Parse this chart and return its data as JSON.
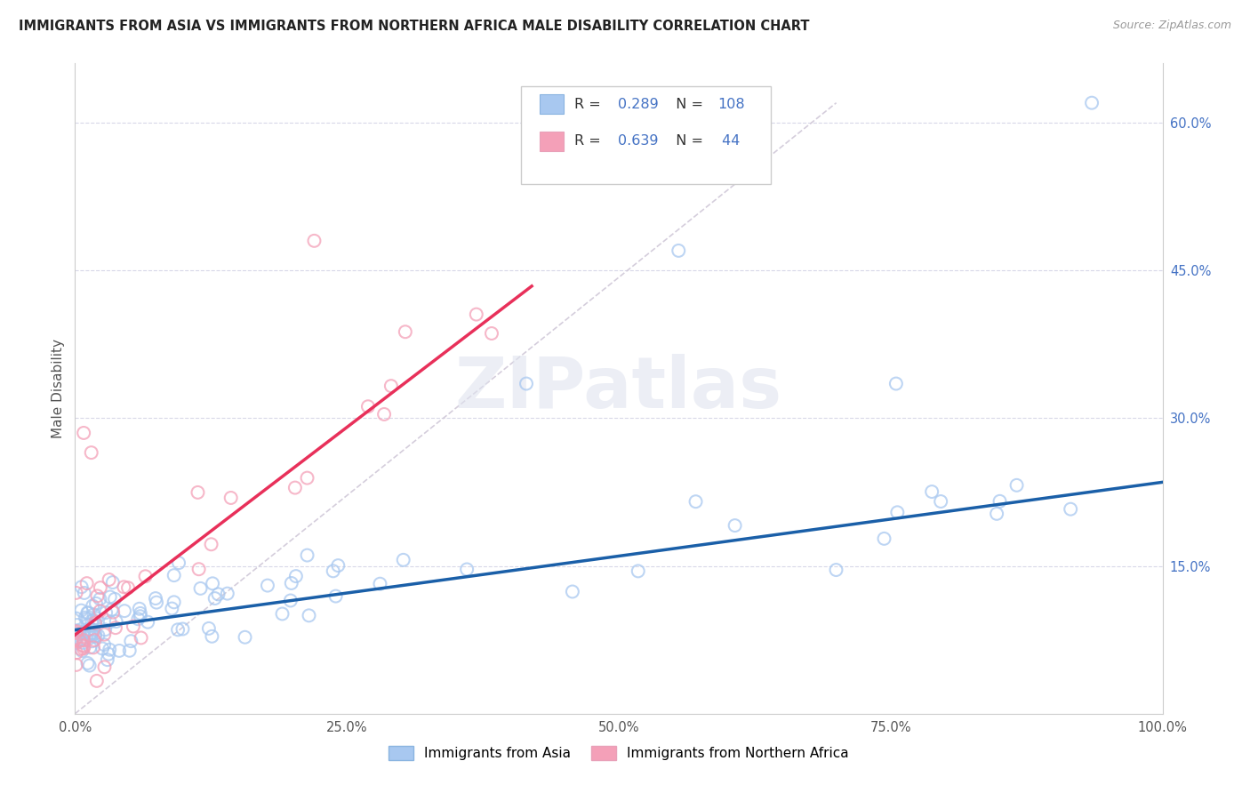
{
  "title": "IMMIGRANTS FROM ASIA VS IMMIGRANTS FROM NORTHERN AFRICA MALE DISABILITY CORRELATION CHART",
  "source": "Source: ZipAtlas.com",
  "ylabel": "Male Disability",
  "xlim": [
    0,
    1.0
  ],
  "ylim": [
    0.0,
    0.66
  ],
  "xticks": [
    0.0,
    0.25,
    0.5,
    0.75,
    1.0
  ],
  "xtick_labels": [
    "0.0%",
    "25.0%",
    "50.0%",
    "75.0%",
    "100.0%"
  ],
  "ytick_labels": [
    "15.0%",
    "30.0%",
    "45.0%",
    "60.0%"
  ],
  "yticks": [
    0.15,
    0.3,
    0.45,
    0.6
  ],
  "R_asia": 0.289,
  "N_asia": 108,
  "R_africa": 0.639,
  "N_africa": 44,
  "color_asia": "#a8c8f0",
  "color_africa": "#f4a0b8",
  "line_color_asia": "#1a5fa8",
  "line_color_africa": "#e8305a",
  "diagonal_color": "#d0c8d8",
  "background_color": "#ffffff",
  "grid_color": "#d8d8e8",
  "legend_label_asia": "Immigrants from Asia",
  "legend_label_africa": "Immigrants from Northern Africa",
  "watermark_text": "ZIPatlas",
  "title_color": "#222222",
  "source_color": "#999999",
  "ylabel_color": "#555555",
  "ytick_color": "#4472c4",
  "xtick_color": "#555555"
}
